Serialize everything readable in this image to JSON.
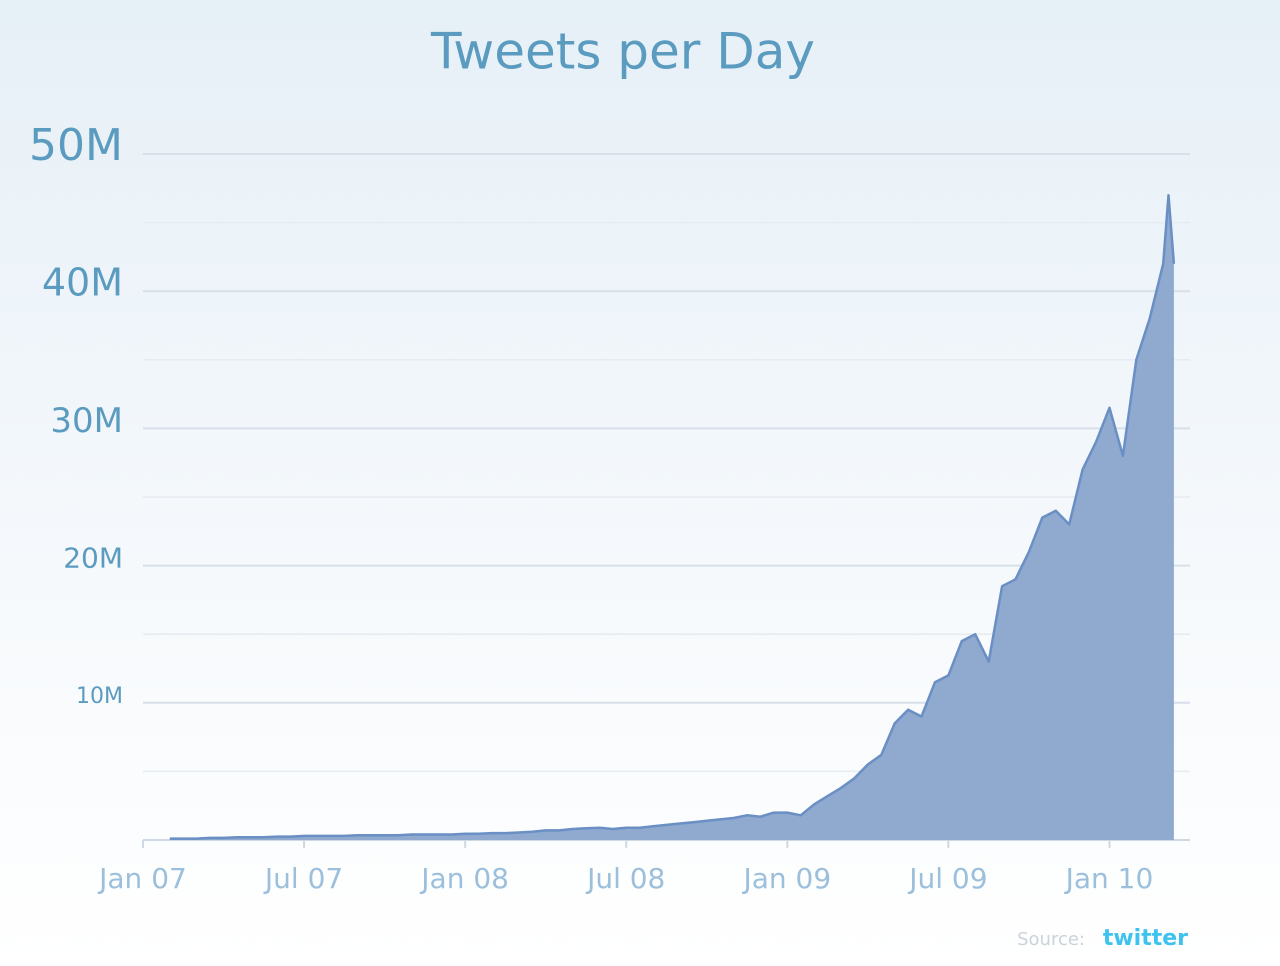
{
  "chart_data": {
    "type": "area",
    "title": "Tweets per Day",
    "x": [
      1,
      1.5,
      2,
      2.5,
      3,
      3.5,
      4,
      4.5,
      5,
      5.5,
      6,
      6.5,
      7,
      7.5,
      8,
      8.5,
      9,
      9.5,
      10,
      10.5,
      11,
      11.5,
      12,
      12.5,
      13,
      13.5,
      14,
      14.5,
      15,
      15.5,
      16,
      16.5,
      17,
      17.5,
      18,
      18.5,
      19,
      19.5,
      20,
      20.5,
      21,
      21.5,
      22,
      22.5,
      23,
      23.5,
      24,
      24.5,
      25,
      25.5,
      26,
      26.5,
      27,
      27.5,
      28,
      28.5,
      29,
      29.5,
      30,
      30.5,
      31,
      31.5,
      32,
      32.5,
      33,
      33.5,
      34,
      34.5,
      35,
      35.5,
      36,
      36.5,
      37,
      37.5,
      38,
      38.2,
      38.4
    ],
    "series": [
      {
        "name": "Tweets",
        "color": "#6a8fc4",
        "fill": "#8fa9cf",
        "values": [
          0.1,
          0.1,
          0.1,
          0.15,
          0.15,
          0.2,
          0.2,
          0.2,
          0.25,
          0.25,
          0.3,
          0.3,
          0.3,
          0.3,
          0.35,
          0.35,
          0.35,
          0.35,
          0.4,
          0.4,
          0.4,
          0.4,
          0.45,
          0.45,
          0.5,
          0.5,
          0.55,
          0.6,
          0.7,
          0.7,
          0.8,
          0.85,
          0.9,
          0.8,
          0.9,
          0.9,
          1.0,
          1.1,
          1.2,
          1.3,
          1.4,
          1.5,
          1.6,
          1.8,
          1.7,
          2.0,
          2.0,
          1.8,
          2.6,
          3.2,
          3.8,
          4.5,
          5.5,
          6.2,
          8.5,
          9.5,
          9.0,
          11.5,
          12.0,
          14.5,
          15.0,
          13.0,
          18.5,
          19.0,
          21.0,
          23.5,
          24.0,
          23.0,
          27.0,
          29.0,
          31.5,
          28.0,
          35.0,
          38.0,
          42.0,
          47.0,
          42.0
        ]
      }
    ],
    "xlim": [
      0,
      39
    ],
    "xticks": [
      {
        "value": 0,
        "label": "Jan 07"
      },
      {
        "value": 6,
        "label": "Jul 07"
      },
      {
        "value": 12,
        "label": "Jan 08"
      },
      {
        "value": 18,
        "label": "Jul 08"
      },
      {
        "value": 24,
        "label": "Jan 09"
      },
      {
        "value": 30,
        "label": "Jul 09"
      },
      {
        "value": 36,
        "label": "Jan 10"
      }
    ],
    "ylim": [
      0,
      50
    ],
    "yticks": [
      {
        "value": 10,
        "label": "10M"
      },
      {
        "value": 20,
        "label": "20M"
      },
      {
        "value": 30,
        "label": "30M"
      },
      {
        "value": 40,
        "label": "40M"
      },
      {
        "value": 50,
        "label": "50M"
      }
    ],
    "minor_yticks": [
      5,
      15,
      25,
      35,
      45
    ],
    "grid": true,
    "source_label": "Source:",
    "source_logo": "twitter"
  }
}
